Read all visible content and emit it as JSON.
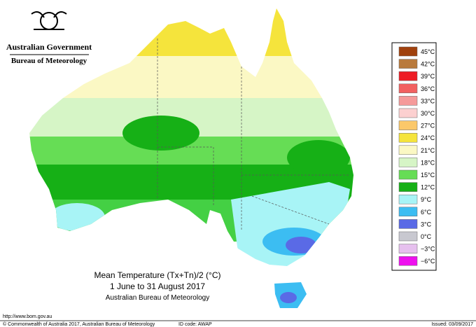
{
  "header": {
    "government": "Australian Government",
    "agency": "Bureau of Meteorology"
  },
  "legend": {
    "items": [
      {
        "label": "45°C",
        "color": "#a0410d"
      },
      {
        "label": "42°C",
        "color": "#b97a3c"
      },
      {
        "label": "39°C",
        "color": "#ee1c24"
      },
      {
        "label": "36°C",
        "color": "#f26060"
      },
      {
        "label": "33°C",
        "color": "#f59a9a"
      },
      {
        "label": "30°C",
        "color": "#fcd0d0"
      },
      {
        "label": "27°C",
        "color": "#fbc86a"
      },
      {
        "label": "24°C",
        "color": "#f5e43c"
      },
      {
        "label": "21°C",
        "color": "#fbf8c4"
      },
      {
        "label": "18°C",
        "color": "#d6f5c6"
      },
      {
        "label": "15°C",
        "color": "#66dd55"
      },
      {
        "label": "12°C",
        "color": "#16b016"
      },
      {
        "label": "9°C",
        "color": "#a8f4f6"
      },
      {
        "label": "6°C",
        "color": "#3cbdf2"
      },
      {
        "label": "3°C",
        "color": "#5a6ae6"
      },
      {
        "label": "0°C",
        "color": "#c8c8d0"
      },
      {
        "label": "−3°C",
        "color": "#e6c0ee"
      },
      {
        "label": "−6°C",
        "color": "#ee10ee"
      }
    ]
  },
  "title": {
    "line1": "Mean Temperature (Tx+Tn)/2 (°C)",
    "line2": "1 June to 31 August 2017",
    "line3": "Australian Bureau of Meteorology"
  },
  "footer": {
    "url": "http://www.bom.gov.au",
    "copyright": "© Commonwealth of Australia 2017, Australian Bureau of Meteorology",
    "id_code": "ID code: AWAP",
    "issued": "Issued: 03/09/2017"
  }
}
